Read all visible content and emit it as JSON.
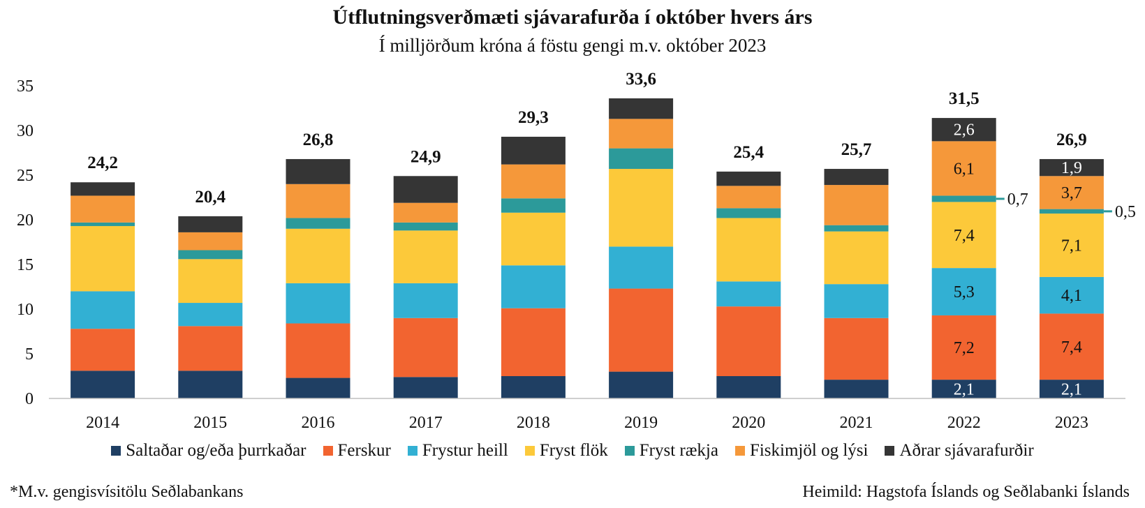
{
  "chart_data": {
    "type": "bar",
    "stacked": true,
    "title": "Útflutningsverðmæti sjávarafurða í október hvers árs",
    "subtitle": "Í milljörðum króna á föstu gengi m.v. október 2023",
    "categories": [
      "2014",
      "2015",
      "2016",
      "2017",
      "2018",
      "2019",
      "2020",
      "2021",
      "2022",
      "2023"
    ],
    "ylim": [
      0,
      35
    ],
    "yticks": [
      0,
      5,
      10,
      15,
      20,
      25,
      30,
      35
    ],
    "grid": false,
    "legend_position": "bottom",
    "totals": [
      "24,2",
      "20,4",
      "26,8",
      "24,9",
      "29,3",
      "33,6",
      "25,4",
      "25,7",
      "31,5",
      "26,9"
    ],
    "series": [
      {
        "name": "Saltaðar og/eða þurrkaðar",
        "color": "#1f3f63",
        "values": [
          3.1,
          3.1,
          2.3,
          2.4,
          2.5,
          3.0,
          2.5,
          2.1,
          2.1,
          2.1
        ]
      },
      {
        "name": "Ferskur",
        "color": "#f26430",
        "values": [
          4.7,
          5.0,
          6.1,
          6.6,
          7.6,
          9.3,
          7.8,
          6.9,
          7.2,
          7.4
        ]
      },
      {
        "name": "Frystur heill",
        "color": "#32b0d3",
        "values": [
          4.2,
          2.6,
          4.5,
          3.9,
          4.8,
          4.7,
          2.8,
          3.8,
          5.3,
          4.1
        ]
      },
      {
        "name": "Fryst flök",
        "color": "#fcc93a",
        "values": [
          7.3,
          4.9,
          6.1,
          5.9,
          5.9,
          8.7,
          7.1,
          5.9,
          7.4,
          7.1
        ]
      },
      {
        "name": "Fryst rækja",
        "color": "#2c9a9a",
        "values": [
          0.4,
          1.0,
          1.2,
          0.9,
          1.6,
          2.3,
          1.1,
          0.7,
          0.7,
          0.5
        ]
      },
      {
        "name": "Fiskimjöl og lýsi",
        "color": "#f5983a",
        "values": [
          3.0,
          2.0,
          3.8,
          2.2,
          3.8,
          3.3,
          2.5,
          4.5,
          6.1,
          3.7
        ]
      },
      {
        "name": "Aðrar sjávarafurðir",
        "color": "#353535",
        "values": [
          1.5,
          1.8,
          2.8,
          3.0,
          3.1,
          2.3,
          1.6,
          1.8,
          2.6,
          1.9
        ]
      }
    ],
    "data_labels": {
      "2022": [
        "2,1",
        "7,2",
        "5,3",
        "7,4",
        "0,7",
        "6,1",
        "2,6"
      ],
      "2023": [
        "2,1",
        "7,4",
        "4,1",
        "7,1",
        "0,5",
        "3,7",
        "1,9"
      ]
    }
  },
  "footnote": "*M.v. gengisvísitölu  Seðlabankans",
  "source": "Heimild:  Hagstofa Íslands og Seðlabanki Íslands"
}
